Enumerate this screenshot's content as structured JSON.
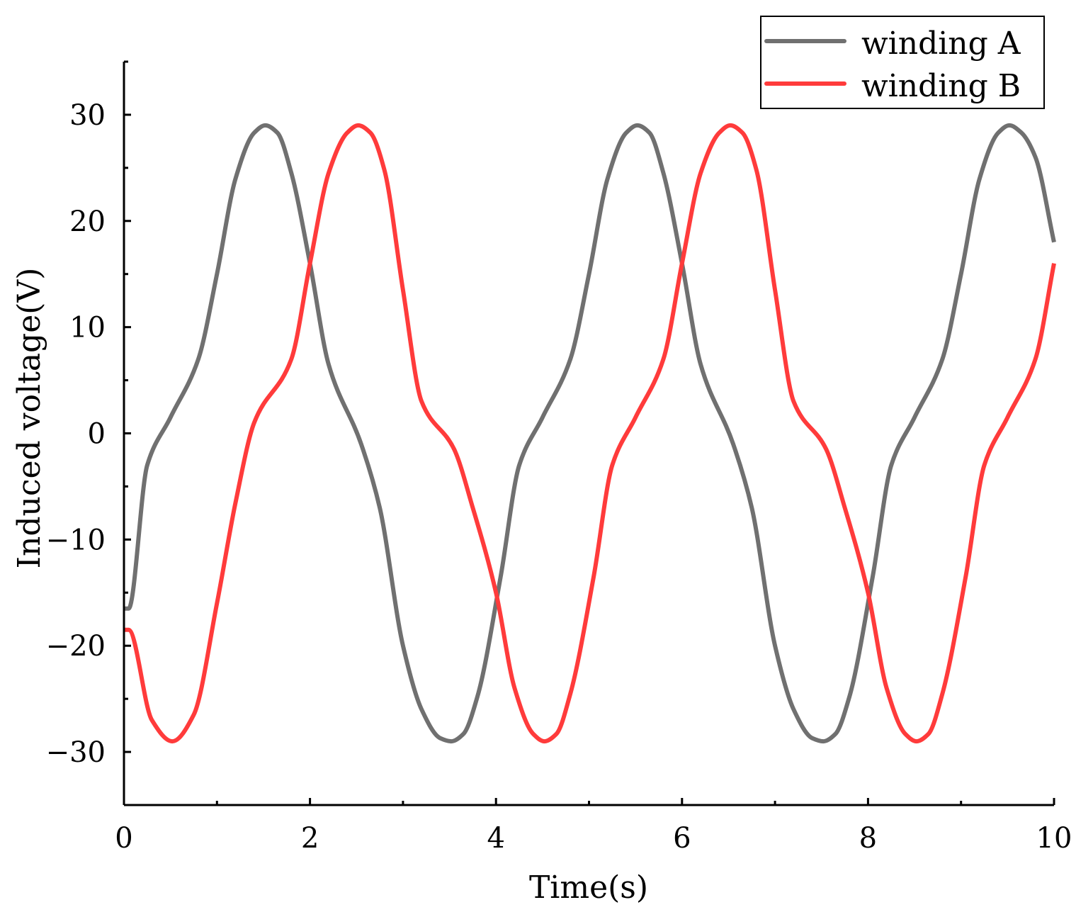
{
  "chart_data": {
    "type": "line",
    "title": "",
    "xlabel": "Time(s)",
    "ylabel": "Induced voltage(V)",
    "xlim": [
      0,
      10
    ],
    "ylim": [
      -35,
      35
    ],
    "x_ticks": [
      0,
      2,
      4,
      6,
      8,
      10
    ],
    "x_tick_labels": [
      "0",
      "2",
      "4",
      "6",
      "8",
      "10"
    ],
    "y_ticks": [
      -30,
      -20,
      -10,
      0,
      10,
      20,
      30
    ],
    "y_tick_labels": [
      "−30",
      "−20",
      "−10",
      "0",
      "10",
      "20",
      "30"
    ],
    "grid": false,
    "legend_position": "top-right",
    "series": [
      {
        "name": "winding A",
        "color": "#707070",
        "x": [
          0,
          0.05,
          0.25,
          0.5,
          0.8,
          1.0,
          1.2,
          1.4,
          1.52,
          1.65,
          1.8,
          2.0,
          2.2,
          2.55,
          2.75,
          3.0,
          3.2,
          3.4,
          3.52,
          3.65,
          3.8,
          4.05,
          4.25,
          4.5,
          4.8,
          5.0,
          5.2,
          5.4,
          5.52,
          5.65,
          5.8,
          6.0,
          6.2,
          6.55,
          6.75,
          7.0,
          7.2,
          7.4,
          7.52,
          7.65,
          7.8,
          8.05,
          8.25,
          8.5,
          8.8,
          9.0,
          9.2,
          9.4,
          9.52,
          9.65,
          9.8,
          10.0
        ],
        "y": [
          -16.5,
          -16.5,
          -3,
          1.5,
          7,
          15,
          24,
          28.3,
          29,
          28.3,
          24.5,
          16,
          6.5,
          -1,
          -7,
          -20,
          -26,
          -28.7,
          -29,
          -28.3,
          -24.8,
          -13.5,
          -3,
          1.5,
          7,
          15,
          24,
          28.3,
          29,
          28.3,
          24.5,
          16,
          6.5,
          -1,
          -7,
          -20,
          -26,
          -28.7,
          -29,
          -28.3,
          -24.8,
          -13.5,
          -3,
          1.5,
          7,
          15,
          24,
          28.3,
          29,
          28.3,
          26,
          18
        ]
      },
      {
        "name": "winding B",
        "color": "#ff3b3b",
        "x": [
          0,
          0.05,
          0.3,
          0.52,
          0.75,
          1.0,
          1.2,
          1.4,
          1.8,
          2.0,
          2.2,
          2.4,
          2.52,
          2.65,
          2.8,
          3.0,
          3.2,
          3.55,
          3.75,
          4.0,
          4.2,
          4.4,
          4.52,
          4.65,
          4.8,
          5.05,
          5.25,
          5.5,
          5.8,
          6.0,
          6.2,
          6.4,
          6.52,
          6.65,
          6.8,
          7.0,
          7.2,
          7.55,
          7.75,
          8.0,
          8.2,
          8.4,
          8.52,
          8.65,
          8.8,
          9.05,
          9.25,
          9.5,
          9.8,
          10.0
        ],
        "y": [
          -18.5,
          -18.5,
          -27,
          -29,
          -26.5,
          -16,
          -6.5,
          1,
          7,
          16,
          24.5,
          28.3,
          29,
          28.3,
          24.8,
          13.5,
          3,
          -1.5,
          -7,
          -15,
          -24,
          -28.3,
          -29,
          -28.3,
          -24.5,
          -13.5,
          -3,
          1.5,
          7,
          16,
          24.5,
          28.3,
          29,
          28.3,
          24.8,
          13.5,
          3,
          -1.5,
          -7,
          -15,
          -24,
          -28.3,
          -29,
          -28.3,
          -24.5,
          -13.5,
          -3,
          1.5,
          7,
          16
        ]
      }
    ]
  }
}
